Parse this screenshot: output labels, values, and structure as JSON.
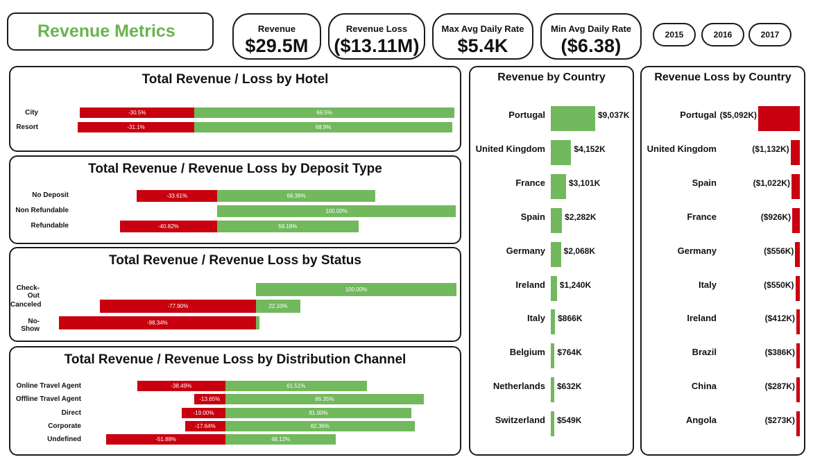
{
  "title": "Revenue Metrics",
  "kpis": [
    {
      "label": "Revenue",
      "value": "$29.5M"
    },
    {
      "label": "Revenue Loss",
      "value": "($13.11M)"
    },
    {
      "label": "Max Avg Daily Rate",
      "value": "$5.4K"
    },
    {
      "label": "Min Avg Daily Rate",
      "value": "($6.38)"
    }
  ],
  "years": [
    "2015",
    "2016",
    "2017"
  ],
  "colors": {
    "accent": "#6ab34f",
    "positive": "#72b85d",
    "negative": "#c8000f"
  },
  "hotel": {
    "title": "Total Revenue / Loss by Hotel",
    "rows": [
      {
        "label": "City",
        "neg": 30.5,
        "pos": 69.5,
        "neg_text": "-30.5%",
        "pos_text": "69.5%"
      },
      {
        "label": "Resort",
        "neg": 31.1,
        "pos": 68.9,
        "neg_text": "-31.1%",
        "pos_text": "68.9%"
      }
    ]
  },
  "deposit": {
    "title": "Total Revenue / Revenue Loss by Deposit Type",
    "rows": [
      {
        "label": "No Deposit",
        "neg": 33.61,
        "pos": 66.39,
        "neg_text": "-33.61%",
        "pos_text": "66.39%"
      },
      {
        "label": "Non Refundable",
        "neg": 0,
        "pos": 100,
        "neg_text": "",
        "pos_text": "100.00%"
      },
      {
        "label": "Refundable",
        "neg": 40.82,
        "pos": 59.18,
        "neg_text": "-40.82%",
        "pos_text": "59.18%"
      }
    ]
  },
  "status": {
    "title": "Total Revenue / Revenue Loss by Status",
    "rows": [
      {
        "label": "Check-Out",
        "neg": 0,
        "pos": 100,
        "neg_text": "",
        "pos_text": "100.00%"
      },
      {
        "label": "Canceled",
        "neg": 77.9,
        "pos": 22.1,
        "neg_text": "-77.90%",
        "pos_text": "22.10%"
      },
      {
        "label": "No-Show",
        "neg": 98.34,
        "pos": 1.66,
        "neg_text": "-98.34%",
        "pos_text": ""
      }
    ]
  },
  "channel": {
    "title": "Total Revenue / Revenue Loss by Distribution Channel",
    "rows": [
      {
        "label": "Online Travel Agent",
        "neg": 38.49,
        "pos": 61.51,
        "neg_text": "-38.49%",
        "pos_text": "61.51%"
      },
      {
        "label": "Offline Travel Agent",
        "neg": 13.65,
        "pos": 86.35,
        "neg_text": "-13.65%",
        "pos_text": "86.35%"
      },
      {
        "label": "Direct",
        "neg": 19.0,
        "pos": 81.0,
        "neg_text": "-19.00%",
        "pos_text": "81.00%"
      },
      {
        "label": "Corporate",
        "neg": 17.64,
        "pos": 82.36,
        "neg_text": "-17.64%",
        "pos_text": "82.36%"
      },
      {
        "label": "Undefined",
        "neg": 51.88,
        "pos": 48.12,
        "neg_text": "-51.88%",
        "pos_text": "48.12%"
      }
    ]
  },
  "revenue_by_country": {
    "title": "Revenue by Country",
    "rows": [
      {
        "country": "Portugal",
        "value": 9037,
        "text": "$9,037K"
      },
      {
        "country": "United Kingdom",
        "value": 4152,
        "text": "$4,152K"
      },
      {
        "country": "France",
        "value": 3101,
        "text": "$3,101K"
      },
      {
        "country": "Spain",
        "value": 2282,
        "text": "$2,282K"
      },
      {
        "country": "Germany",
        "value": 2068,
        "text": "$2,068K"
      },
      {
        "country": "Ireland",
        "value": 1240,
        "text": "$1,240K"
      },
      {
        "country": "Italy",
        "value": 866,
        "text": "$866K"
      },
      {
        "country": "Belgium",
        "value": 764,
        "text": "$764K"
      },
      {
        "country": "Netherlands",
        "value": 632,
        "text": "$632K"
      },
      {
        "country": "Switzerland",
        "value": 549,
        "text": "$549K"
      }
    ]
  },
  "loss_by_country": {
    "title": "Revenue Loss by Country",
    "rows": [
      {
        "country": "Portugal",
        "value": 5092,
        "text": "($5,092K)"
      },
      {
        "country": "United Kingdom",
        "value": 1132,
        "text": "($1,132K)"
      },
      {
        "country": "Spain",
        "value": 1022,
        "text": "($1,022K)"
      },
      {
        "country": "France",
        "value": 926,
        "text": "($926K)"
      },
      {
        "country": "Germany",
        "value": 556,
        "text": "($556K)"
      },
      {
        "country": "Italy",
        "value": 550,
        "text": "($550K)"
      },
      {
        "country": "Ireland",
        "value": 412,
        "text": "($412K)"
      },
      {
        "country": "Brazil",
        "value": 386,
        "text": "($386K)"
      },
      {
        "country": "China",
        "value": 287,
        "text": "($287K)"
      },
      {
        "country": "Angola",
        "value": 273,
        "text": "($273K)"
      }
    ]
  }
}
